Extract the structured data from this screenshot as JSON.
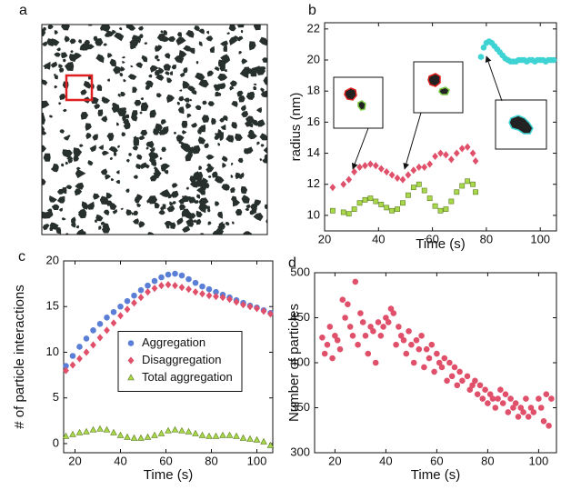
{
  "panel_labels": [
    "a",
    "b",
    "c",
    "d"
  ],
  "chart_data": [
    {
      "type": "scatter",
      "xlabel": "Time (s)",
      "ylabel": "radius (nm)",
      "xlim": [
        20,
        106
      ],
      "ylim": [
        9,
        22.4
      ],
      "xticks": [
        20,
        40,
        60,
        80,
        100
      ],
      "yticks": [
        10,
        12,
        14,
        16,
        18,
        20,
        22
      ],
      "series": [
        {
          "color": "#e0506a",
          "marker": "diamond",
          "x": [
            23,
            27,
            29,
            31,
            33,
            35,
            37,
            39,
            41,
            43,
            45,
            47,
            49,
            51,
            53,
            55,
            57,
            59,
            61,
            63,
            65,
            67,
            69,
            71,
            73,
            75,
            76
          ],
          "values": [
            11.8,
            12.0,
            12.3,
            12.8,
            13.1,
            13.2,
            13.3,
            13.2,
            13.0,
            12.8,
            12.6,
            12.4,
            12.3,
            12.6,
            12.9,
            13.1,
            13.1,
            13.3,
            13.8,
            14.0,
            13.9,
            13.6,
            14.0,
            14.3,
            14.4,
            14.0,
            13.5
          ]
        },
        {
          "color": "#a8d84a",
          "marker": "square",
          "x": [
            23,
            27,
            29,
            31,
            33,
            35,
            37,
            39,
            41,
            43,
            45,
            47,
            49,
            51,
            53,
            55,
            57,
            59,
            61,
            63,
            65,
            67,
            69,
            71,
            73,
            75,
            76
          ],
          "values": [
            10.3,
            10.2,
            10.1,
            10.4,
            10.8,
            11.0,
            11.1,
            10.9,
            10.7,
            10.5,
            10.3,
            10.4,
            10.8,
            11.3,
            11.8,
            12.0,
            11.6,
            11.1,
            10.6,
            10.3,
            10.4,
            10.9,
            11.5,
            11.9,
            12.2,
            12.0,
            11.5
          ]
        },
        {
          "color": "#3fd3d3",
          "marker": "circle",
          "x": [
            78,
            79,
            80,
            81,
            82,
            83,
            84,
            85,
            86,
            87,
            88,
            89,
            90,
            91,
            92,
            93,
            94,
            95,
            96,
            97,
            98,
            99,
            100,
            101,
            102,
            103,
            104,
            105
          ],
          "values": [
            20.2,
            20.8,
            21.1,
            21.2,
            21.1,
            20.9,
            20.7,
            20.5,
            20.3,
            20.1,
            20.0,
            19.9,
            19.9,
            19.9,
            20.0,
            20.0,
            20.0,
            19.9,
            20.0,
            20.0,
            19.9,
            20.0,
            20.0,
            20.0,
            19.9,
            20.0,
            20.0,
            20.0
          ]
        }
      ]
    },
    {
      "type": "scatter",
      "xlabel": "Time (s)",
      "ylabel": "# of particle interactions",
      "xlim": [
        15,
        107
      ],
      "ylim": [
        -1,
        20
      ],
      "xticks": [
        20,
        40,
        60,
        80,
        100
      ],
      "yticks": [
        0,
        5,
        10,
        15,
        20
      ],
      "legend": "center",
      "series": [
        {
          "name": "Aggregation",
          "color": "#5b7fd6",
          "marker": "circle",
          "x": [
            16,
            19,
            22,
            25,
            28,
            31,
            34,
            37,
            40,
            43,
            46,
            49,
            52,
            55,
            58,
            61,
            64,
            67,
            70,
            73,
            76,
            79,
            82,
            85,
            88,
            91,
            94,
            97,
            100,
            103,
            106
          ],
          "values": [
            8.5,
            9.6,
            10.6,
            11.5,
            12.4,
            13.1,
            13.8,
            14.4,
            15.0,
            15.6,
            16.2,
            16.8,
            17.3,
            17.8,
            18.2,
            18.5,
            18.6,
            18.4,
            18.0,
            17.6,
            17.2,
            16.9,
            16.6,
            16.3,
            16.0,
            15.7,
            15.4,
            15.1,
            14.9,
            14.6,
            14.3
          ]
        },
        {
          "name": "Disaggregation",
          "color": "#e0506a",
          "marker": "diamond",
          "x": [
            16,
            19,
            22,
            25,
            28,
            31,
            34,
            37,
            40,
            43,
            46,
            49,
            52,
            55,
            58,
            61,
            64,
            67,
            70,
            73,
            76,
            79,
            82,
            85,
            88,
            91,
            94,
            97,
            100,
            103,
            106
          ],
          "values": [
            8.0,
            8.6,
            9.3,
            10.0,
            10.8,
            11.6,
            12.4,
            13.2,
            14.0,
            14.7,
            15.4,
            16.0,
            16.6,
            17.0,
            17.3,
            17.4,
            17.3,
            17.1,
            16.9,
            16.6,
            16.4,
            16.2,
            16.1,
            16.0,
            15.8,
            15.5,
            15.2,
            15.0,
            14.8,
            14.5,
            14.2
          ]
        },
        {
          "name": "Total aggregation",
          "color": "#a8d84a",
          "marker": "triangle",
          "x": [
            16,
            19,
            22,
            25,
            28,
            31,
            34,
            37,
            40,
            43,
            46,
            49,
            52,
            55,
            58,
            61,
            64,
            67,
            70,
            73,
            76,
            79,
            82,
            85,
            88,
            91,
            94,
            97,
            100,
            103,
            106
          ],
          "values": [
            0.8,
            1.0,
            1.2,
            1.3,
            1.5,
            1.6,
            1.5,
            1.2,
            0.9,
            0.7,
            0.6,
            0.6,
            0.7,
            0.9,
            1.1,
            1.4,
            1.5,
            1.4,
            1.3,
            1.1,
            0.9,
            0.8,
            0.8,
            0.9,
            0.9,
            0.8,
            0.6,
            0.5,
            0.4,
            0.2,
            -0.2
          ]
        }
      ]
    },
    {
      "type": "scatter",
      "xlabel": "Time (s)",
      "ylabel": "Number of particles",
      "xlim": [
        12,
        107
      ],
      "ylim": [
        300,
        500
      ],
      "xticks": [
        20,
        40,
        60,
        80,
        100
      ],
      "yticks": [
        300,
        350,
        400,
        450,
        500
      ],
      "series": [
        {
          "color": "#e0506a",
          "marker": "circle",
          "x": [
            15,
            16,
            17,
            18,
            19,
            20,
            21,
            22,
            23,
            24,
            25,
            26,
            27,
            28,
            29,
            30,
            31,
            32,
            33,
            34,
            35,
            36,
            37,
            38,
            39,
            40,
            41,
            42,
            43,
            44,
            45,
            46,
            47,
            48,
            49,
            50,
            51,
            52,
            53,
            54,
            55,
            56,
            57,
            58,
            59,
            60,
            61,
            62,
            63,
            64,
            65,
            66,
            67,
            68,
            69,
            70,
            72,
            73,
            74,
            75,
            76,
            77,
            78,
            79,
            80,
            81,
            82,
            83,
            84,
            85,
            86,
            87,
            88,
            89,
            90,
            91,
            92,
            93,
            94,
            95,
            96,
            97,
            98,
            100,
            101,
            102,
            103,
            104,
            105
          ],
          "values": [
            428,
            410,
            420,
            440,
            405,
            430,
            425,
            415,
            470,
            450,
            465,
            440,
            430,
            490,
            420,
            455,
            445,
            430,
            410,
            440,
            435,
            400,
            445,
            430,
            440,
            450,
            445,
            460,
            455,
            420,
            440,
            430,
            425,
            410,
            435,
            420,
            400,
            425,
            415,
            430,
            395,
            415,
            405,
            420,
            390,
            410,
            400,
            395,
            405,
            380,
            400,
            385,
            395,
            375,
            390,
            380,
            385,
            370,
            375,
            380,
            365,
            375,
            360,
            370,
            355,
            365,
            360,
            350,
            360,
            370,
            355,
            365,
            345,
            360,
            350,
            355,
            340,
            350,
            345,
            360,
            340,
            350,
            345,
            360,
            350,
            335,
            365,
            330,
            360
          ]
        }
      ]
    }
  ]
}
